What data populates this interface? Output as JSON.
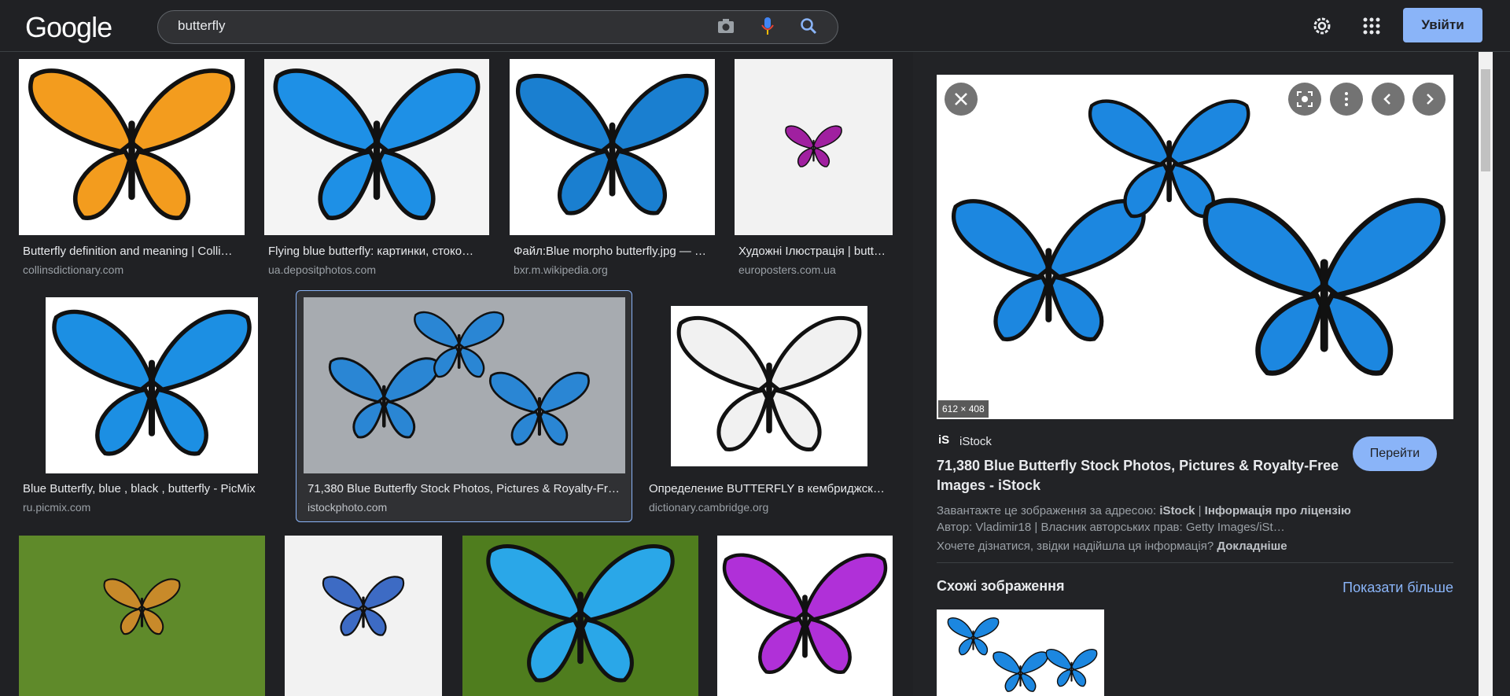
{
  "header": {
    "logo": "Google",
    "query": "butterfly",
    "signin": "Увійти"
  },
  "results": [
    {
      "title": "Butterfly definition and meaning | Colli…",
      "source": "collinsdictionary.com"
    },
    {
      "title": "Flying blue butterfly: картинки, стоко…",
      "source": "ua.depositphotos.com"
    },
    {
      "title": "Файл:Blue morpho butterfly.jpg — …",
      "source": "bxr.m.wikipedia.org"
    },
    {
      "title": "Художні Ілюстрація | butt…",
      "source": "europosters.com.ua"
    },
    {
      "title": "Blue Butterfly, blue , black , butterfly - PicMix",
      "source": "ru.picmix.com"
    },
    {
      "title": "71,380 Blue Butterfly Stock Photos, Pictures & Royalty-Fr…",
      "source": "istockphoto.com"
    },
    {
      "title": "Определение BUTTERFLY в кембриджск…",
      "source": "dictionary.cambridge.org"
    }
  ],
  "panel": {
    "size": "612 × 408",
    "source": "iStock",
    "title": "71,380 Blue Butterfly Stock Photos, Pictures & Royalty-Free Images - iStock",
    "visit": "Перейти",
    "download_prefix": "Завантажте це зображення за адресою:",
    "download_source": "iStock",
    "download_sep": "|",
    "license": "Інформація про ліцензію",
    "author": "Автор: Vladimir18 | Власник авторських прав: Getty Images/iSt…",
    "info_question": "Хочете дізнатися, звідки надійшла ця інформація?",
    "info_link": "Докладніше",
    "similar": "Схожі зображення",
    "more": "Показати більше"
  }
}
